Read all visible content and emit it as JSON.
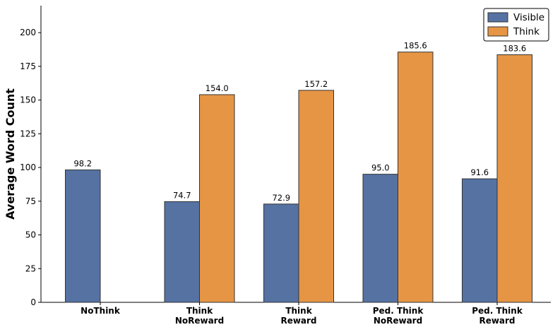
{
  "chart_data": {
    "type": "bar",
    "ylabel": "Average Word Count",
    "xlabel": "",
    "ylim": [
      0,
      220
    ],
    "yticks": [
      0,
      25,
      50,
      75,
      100,
      125,
      150,
      175,
      200
    ],
    "categories": [
      [
        "NoThink"
      ],
      [
        "Think",
        "NoReward"
      ],
      [
        "Think",
        "Reward"
      ],
      [
        "Ped. Think",
        "NoReward"
      ],
      [
        "Ped. Think",
        "Reward"
      ]
    ],
    "series": [
      {
        "name": "Visible",
        "color": "#5572a3",
        "values": [
          98.2,
          74.7,
          72.9,
          95.0,
          91.6
        ],
        "labels": [
          "98.2",
          "74.7",
          "72.9",
          "95.0",
          "91.6"
        ]
      },
      {
        "name": "Think",
        "color": "#e69545",
        "values": [
          null,
          154.0,
          157.2,
          185.6,
          183.6
        ],
        "labels": [
          "",
          "154.0",
          "157.2",
          "185.6",
          "183.6"
        ]
      }
    ],
    "legend": "top-right",
    "grid": false
  }
}
